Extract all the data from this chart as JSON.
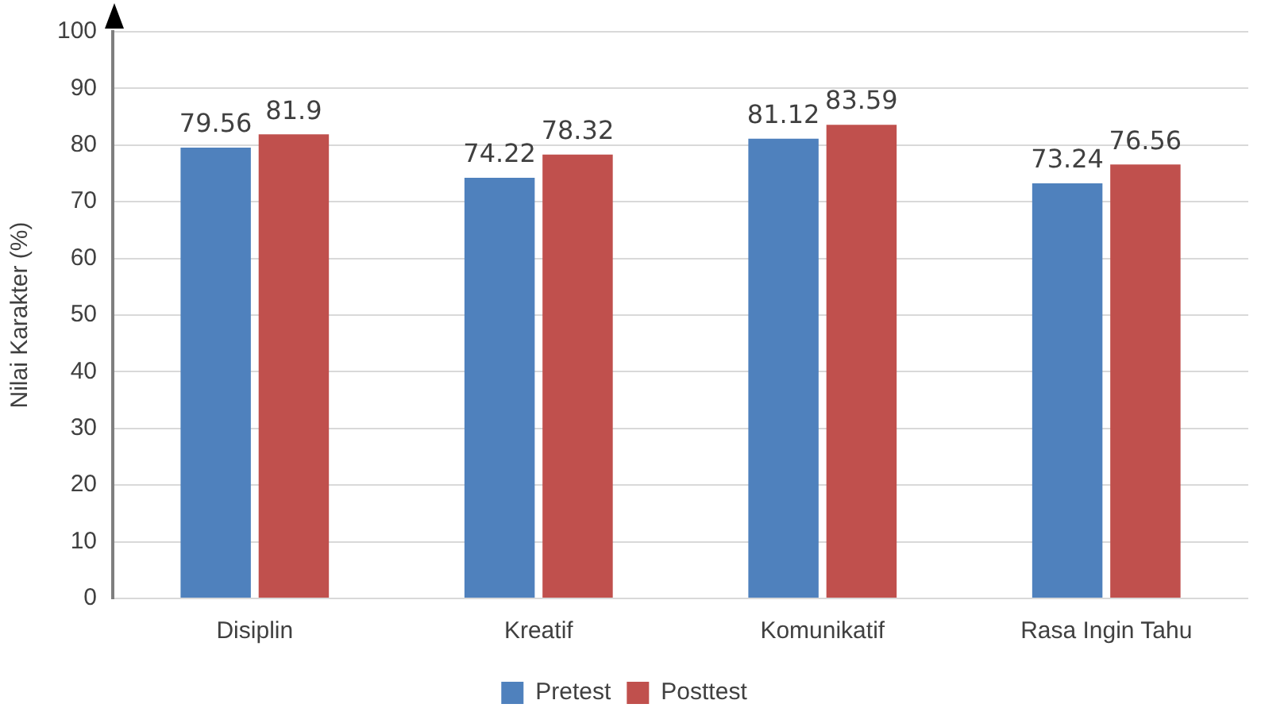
{
  "chart_data": {
    "type": "bar",
    "ylabel": "Nilai Karakter (%)",
    "categories": [
      "Disiplin",
      "Kreatif",
      "Komunikatif",
      "Rasa Ingin Tahu"
    ],
    "series": [
      {
        "name": "Pretest",
        "color": "#4f81bd",
        "values": [
          79.56,
          74.22,
          81.12,
          73.24
        ]
      },
      {
        "name": "Posttest",
        "color": "#c0504d",
        "values": [
          81.9,
          78.32,
          83.59,
          76.56
        ]
      }
    ],
    "ylim": [
      0,
      100
    ],
    "yticks": [
      0,
      10,
      20,
      30,
      40,
      50,
      60,
      70,
      80,
      90,
      100
    ],
    "grid": "y",
    "legend": "bottom",
    "data_labels": true
  }
}
